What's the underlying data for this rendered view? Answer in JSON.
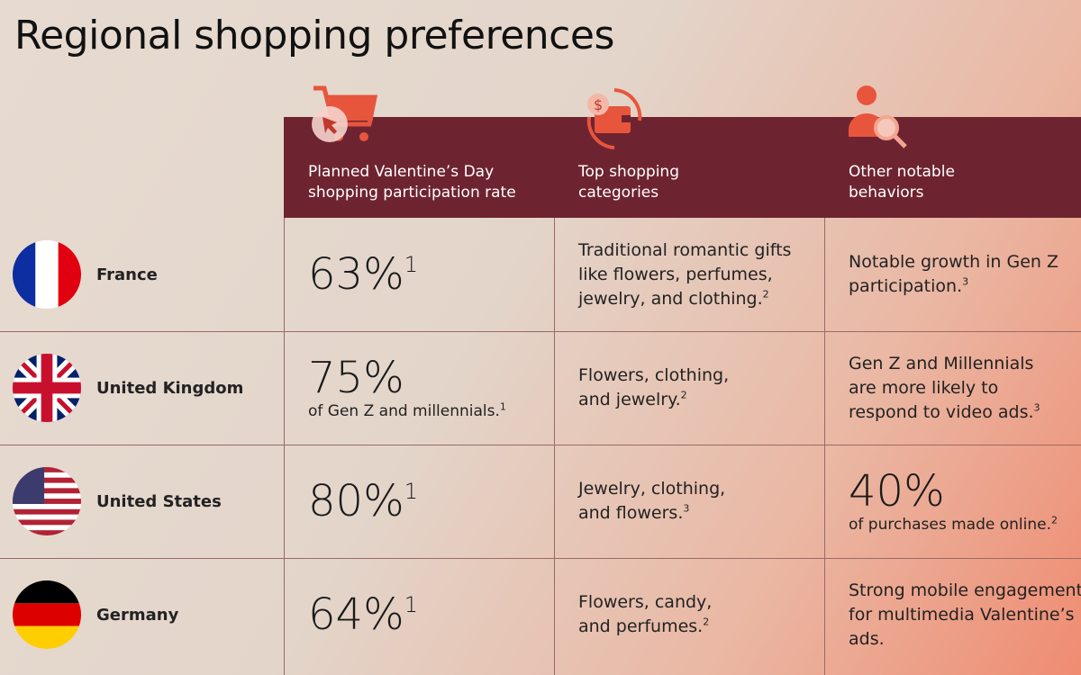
{
  "title": "Regional shopping preferences",
  "header": [
    {
      "line1": "Planned Valentine’s Day",
      "line2": "shopping participation rate",
      "icon": "shopping-cart-icon"
    },
    {
      "line1": "Top shopping",
      "line2": "categories",
      "icon": "wallet-exchange-icon"
    },
    {
      "line1": "Other notable",
      "line2": "behaviors",
      "icon": "person-search-icon"
    }
  ],
  "colors": {
    "header_bg": "#6e2430",
    "icon": "#e8553d"
  },
  "rows": [
    {
      "country": "France",
      "flag": "france-flag-icon",
      "rate": {
        "big": "63%",
        "sup": "1",
        "text": "",
        "text_sup": ""
      },
      "categories": {
        "text": "Traditional romantic gifts like flowers, perfumes, jewelry, and clothing.",
        "sup": "2"
      },
      "behavior": {
        "big": "",
        "big_sup": "",
        "text": "Notable growth in Gen Z participation.",
        "sup": "3"
      }
    },
    {
      "country": "United Kingdom",
      "flag": "uk-flag-icon",
      "rate": {
        "big": "75%",
        "sup": "",
        "text": "of Gen Z and millennials.",
        "text_sup": "1"
      },
      "categories": {
        "text": "Flowers, clothing, and jewelry.",
        "sup": "2"
      },
      "behavior": {
        "big": "",
        "big_sup": "",
        "text": "Gen Z and Millennials are more likely to respond to video ads.",
        "sup": "3"
      }
    },
    {
      "country": "United States",
      "flag": "us-flag-icon",
      "rate": {
        "big": "80%",
        "sup": "1",
        "text": "",
        "text_sup": ""
      },
      "categories": {
        "text": "Jewelry, clothing, and flowers.",
        "sup": "3"
      },
      "behavior": {
        "big": "40%",
        "big_sup": "",
        "text": "of purchases made online.",
        "sup": "2"
      }
    },
    {
      "country": "Germany",
      "flag": "germany-flag-icon",
      "rate": {
        "big": "64%",
        "sup": "1",
        "text": "",
        "text_sup": ""
      },
      "categories": {
        "text": "Flowers, candy, and perfumes.",
        "sup": "2"
      },
      "behavior": {
        "big": "",
        "big_sup": "",
        "text": "Strong mobile engagement for multimedia Valentine’s ads.",
        "sup": ""
      }
    }
  ]
}
